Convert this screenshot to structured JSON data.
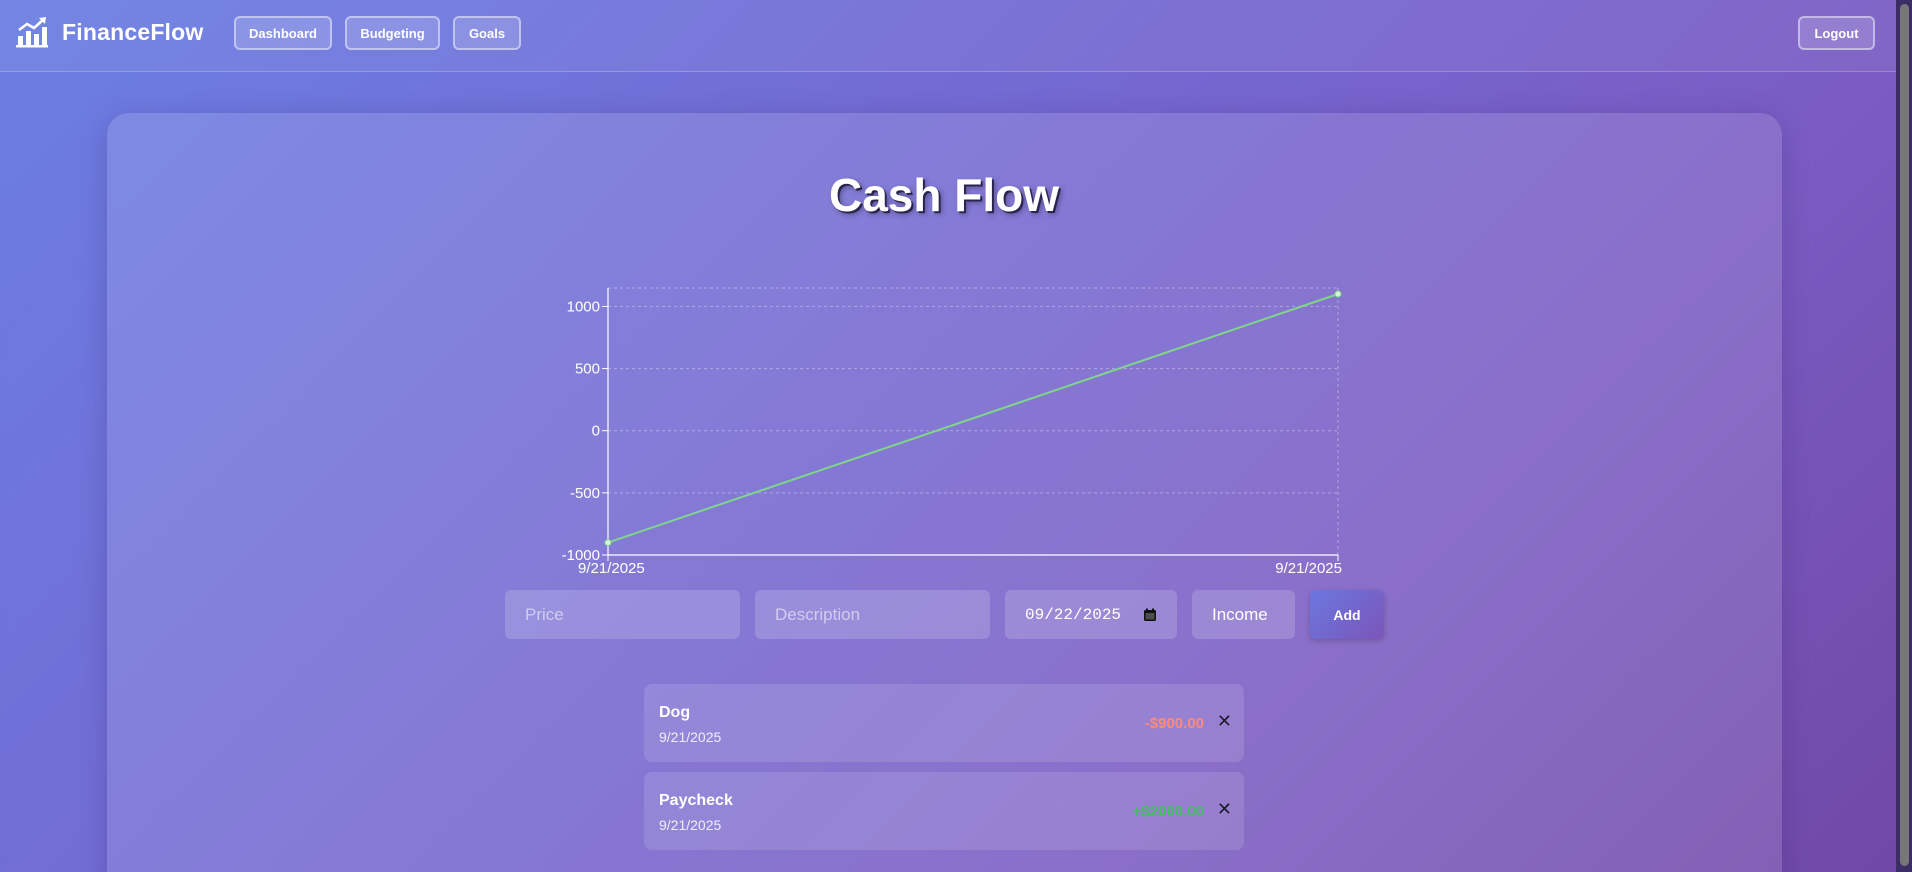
{
  "app": {
    "name": "FinanceFlow"
  },
  "nav": {
    "links": [
      {
        "label": "Dashboard"
      },
      {
        "label": "Budgeting"
      },
      {
        "label": "Goals"
      }
    ],
    "logout_label": "Logout"
  },
  "page": {
    "title": "Cash Flow"
  },
  "chart_data": {
    "type": "line",
    "x": [
      "9/21/2025",
      "9/21/2025"
    ],
    "series": [
      {
        "values": [
          -900,
          1100
        ],
        "color": "#7fd68a"
      }
    ],
    "ylim": [
      -1000,
      1100
    ],
    "yticks": [
      1000,
      500,
      0,
      -500,
      -1000
    ],
    "xticks": [
      "9/21/2025",
      "9/21/2025"
    ],
    "grid": true,
    "title": "",
    "xlabel": "",
    "ylabel": ""
  },
  "form": {
    "price_placeholder": "Price",
    "description_placeholder": "Description",
    "date_value": "09/22/2025",
    "type_value": "Income",
    "add_label": "Add"
  },
  "transactions": [
    {
      "name": "Dog",
      "date": "9/21/2025",
      "amount": "-$900.00",
      "sign": "neg"
    },
    {
      "name": "Paycheck",
      "date": "9/21/2025",
      "amount": "+$2000.00",
      "sign": "pos"
    }
  ],
  "icons": {
    "brand": "chart-growth-icon",
    "calendar": "calendar-icon",
    "delete": "close-icon"
  }
}
